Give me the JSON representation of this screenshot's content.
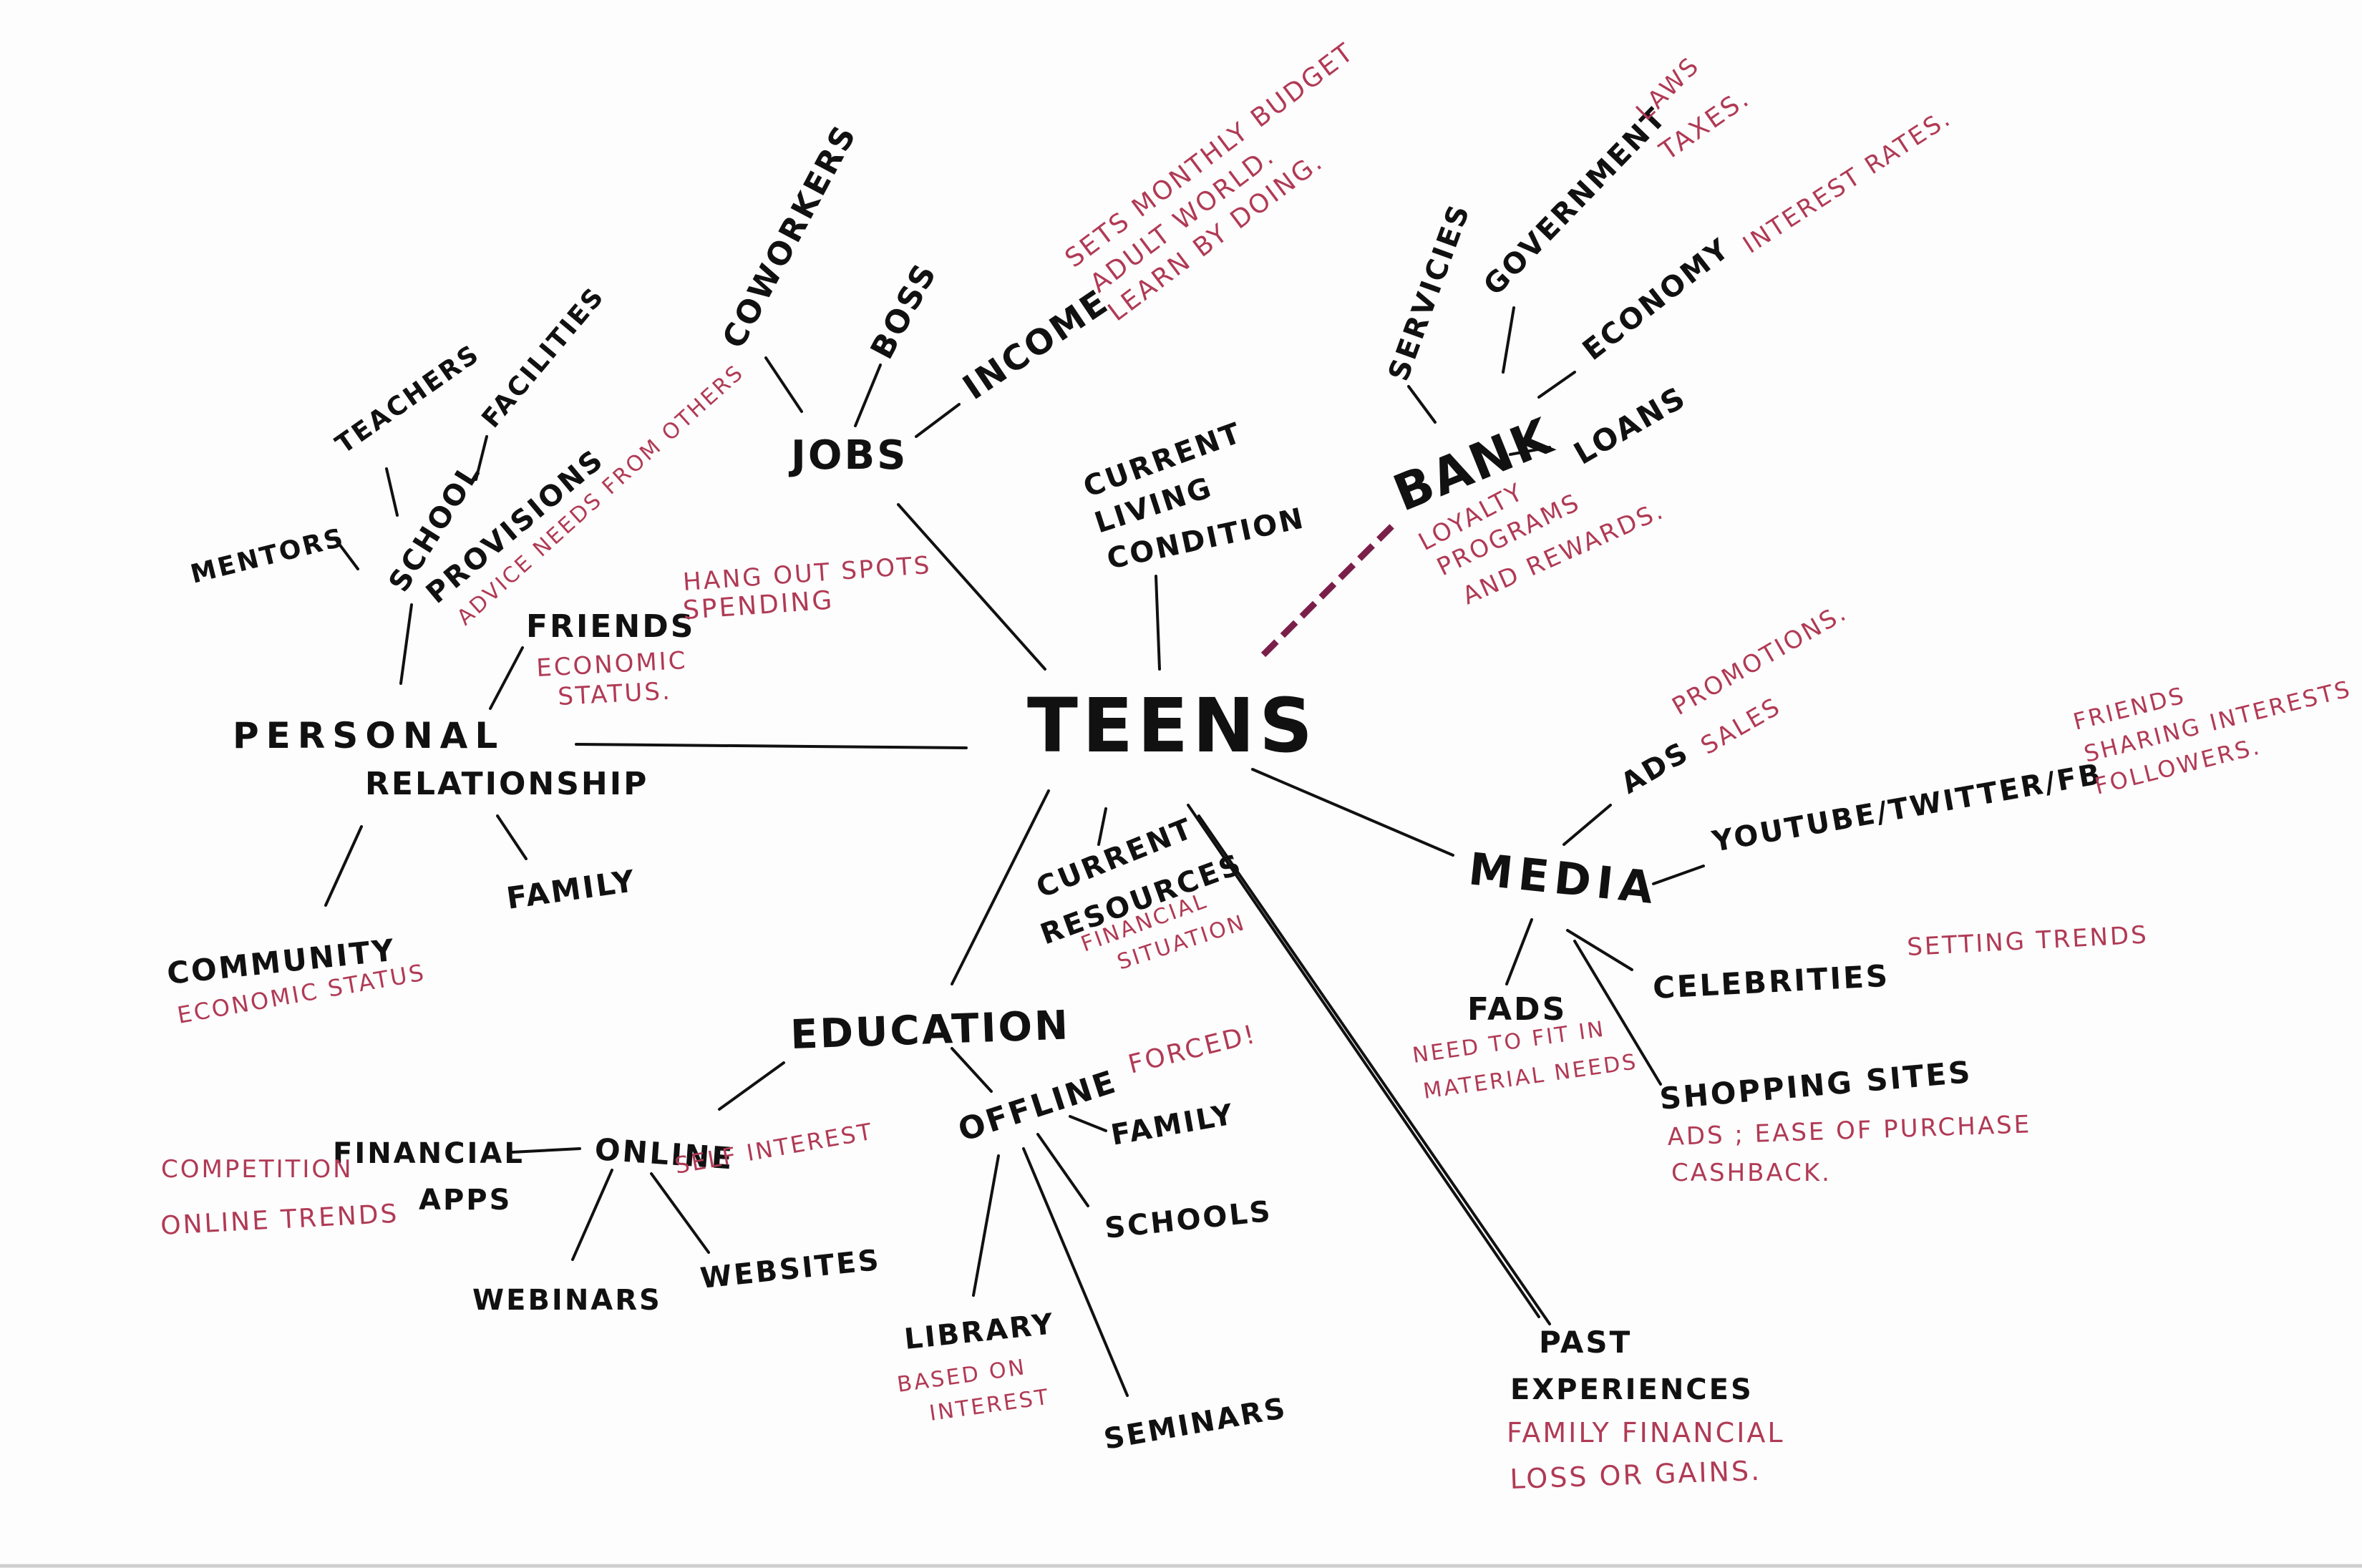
{
  "center": "TEENS",
  "jobs": {
    "label": "JOBS",
    "coworkers": "COWORKERS",
    "boss": "BOSS",
    "income": "INCOME",
    "income_notes": [
      "SETS MONTHLY BUDGET",
      "ADULT WORLD.",
      "LEARN BY DOING."
    ]
  },
  "living": {
    "lines": [
      "CURRENT",
      "LIVING",
      "CONDITION"
    ]
  },
  "bank": {
    "label": "BANK",
    "services": "SERVICIES",
    "government": "GOVERNMENT",
    "government_notes": [
      "LAWS",
      "TAXES."
    ],
    "economy": "ECONOMY",
    "economy_note": "INTEREST RATES.",
    "loans": "LOANS",
    "notes": [
      "LOYALTY",
      "PROGRAMS",
      "AND REWARDS."
    ]
  },
  "personal": {
    "label": [
      "PERSONAL",
      "RELATIONSHIP"
    ],
    "mentors": "MENTORS",
    "teachers": "TEACHERS",
    "school": "SCHOOL",
    "facilities": "FACILITIES",
    "provisions": "PROVISIONS",
    "provisions_note": "ADVICE NEEDS FROM OTHERS",
    "friends": "FRIENDS",
    "friends_notes": [
      "HANG OUT SPOTS",
      "SPENDING"
    ],
    "friends_status": [
      "ECONOMIC",
      "STATUS."
    ],
    "community": "COMMUNITY",
    "community_note": "ECONOMIC STATUS",
    "family": "FAMILY"
  },
  "resources": {
    "lines": [
      "CURRENT",
      "RESOURCES"
    ],
    "notes": [
      "FINANCIAL",
      "SITUATION"
    ]
  },
  "media": {
    "label": "MEDIA",
    "ads": "ADS",
    "ads_notes": [
      "PROMOTIONS.",
      "SALES"
    ],
    "social": "YOUTUBE/TWITTER/FB",
    "social_notes": [
      "FRIENDS",
      "SHARING INTERESTS",
      "FOLLOWERS."
    ],
    "celebrities": "CELEBRITIES",
    "celebrities_note": "SETTING TRENDS",
    "fads": "FADS",
    "fads_notes": [
      "NEED TO FIT IN",
      "MATERIAL NEEDS"
    ],
    "shopping": "SHOPPING SITES",
    "shopping_notes": [
      "ADS ; EASE OF PURCHASE",
      "CASHBACK."
    ]
  },
  "education": {
    "label": "EDUCATION",
    "online": "ONLINE",
    "online_note": "SELF INTEREST",
    "financial": "FINANCIAL",
    "apps": "APPS",
    "competition": "COMPETITION",
    "online_trends": "ONLINE TRENDS",
    "webinars": "WEBINARS",
    "websites": "WEBSITES",
    "offline": "OFFLINE",
    "offline_note": "FORCED!",
    "family": "FAMILY",
    "schools": "SCHOOLS",
    "library": "LIBRARY",
    "library_notes": [
      "BASED ON",
      "INTEREST"
    ],
    "seminars": "SEMINARS"
  },
  "past": {
    "lines": [
      "PAST",
      "EXPERIENCES"
    ],
    "notes": [
      "FAMILY FINANCIAL",
      "LOSS OR GAINS."
    ]
  },
  "colors": {
    "ink": "#111111",
    "note": "#b03a55",
    "dashed": "#7a1f4a"
  }
}
